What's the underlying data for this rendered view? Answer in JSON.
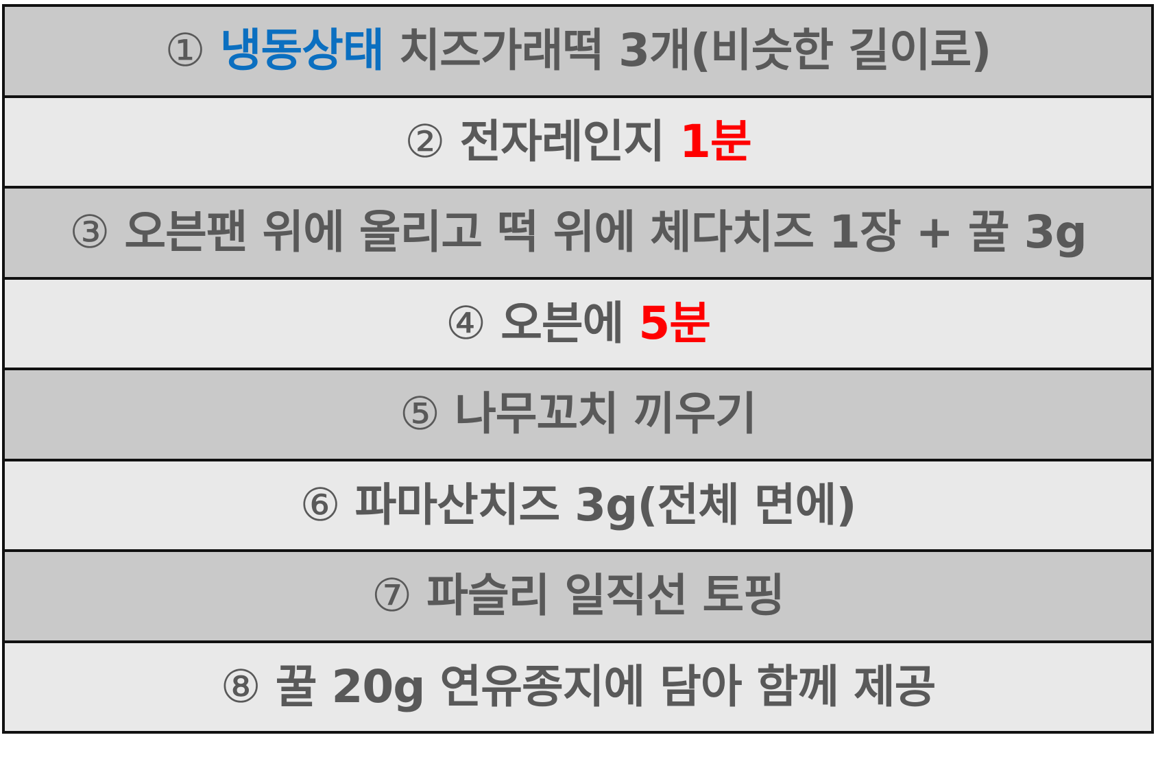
{
  "steps": [
    {
      "num": "①",
      "shade": "dark",
      "parts": [
        {
          "text": "냉동상태",
          "color": "blue"
        },
        {
          "text": " 치즈가래떡 3개(비슷한 길이로)",
          "color": "default"
        }
      ]
    },
    {
      "num": "②",
      "shade": "light",
      "parts": [
        {
          "text": "전자레인지 ",
          "color": "default"
        },
        {
          "text": "1분",
          "color": "red"
        }
      ]
    },
    {
      "num": "③",
      "shade": "dark",
      "parts": [
        {
          "text": "오븐팬 위에 올리고 떡 위에 체다치즈 1장 + 꿀 3g",
          "color": "default"
        }
      ]
    },
    {
      "num": "④",
      "shade": "light",
      "parts": [
        {
          "text": "오븐에 ",
          "color": "default"
        },
        {
          "text": "5분",
          "color": "red"
        }
      ]
    },
    {
      "num": "⑤",
      "shade": "dark",
      "parts": [
        {
          "text": "나무꼬치 끼우기",
          "color": "default"
        }
      ]
    },
    {
      "num": "⑥",
      "shade": "light",
      "parts": [
        {
          "text": "파마산치즈 3g(전체 면에)",
          "color": "default"
        }
      ]
    },
    {
      "num": "⑦",
      "shade": "dark",
      "parts": [
        {
          "text": "파슬리 일직선 토핑",
          "color": "default"
        }
      ]
    },
    {
      "num": "⑧",
      "shade": "light",
      "parts": [
        {
          "text": "꿀 20g 연유종지에 담아 함께 제공",
          "color": "default"
        }
      ]
    }
  ],
  "colors": {
    "text": "#595959",
    "blue": "#0b6fc0",
    "red": "#ff0000",
    "row_dark": "#c9c9c9",
    "row_light": "#e9e9e9",
    "border": "#111111"
  }
}
